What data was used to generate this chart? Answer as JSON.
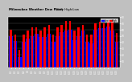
{
  "title": "Milwaukee Weather Dew Point",
  "subtitle": "Daily High/Low",
  "background_color": "#000000",
  "plot_bg_color": "#000000",
  "outer_bg_color": "#c0c0c0",
  "bar_color_high": "#ff0000",
  "bar_color_low": "#0000ff",
  "legend_high": "High",
  "legend_low": "Low",
  "ylim": [
    0,
    80
  ],
  "yticks": [
    10,
    20,
    30,
    40,
    50,
    60,
    70,
    80
  ],
  "categories": [
    "6/1",
    "6/2",
    "6/3",
    "6/4",
    "6/5",
    "6/6",
    "6/7",
    "6/8",
    "6/9",
    "6/10",
    "6/11",
    "6/12",
    "6/13",
    "6/14",
    "6/15",
    "6/16",
    "6/17",
    "6/18",
    "6/19",
    "6/20",
    "6/21",
    "6/22",
    "6/23",
    "6/24",
    "6/25",
    "6/26"
  ],
  "highs": [
    60,
    52,
    28,
    52,
    58,
    63,
    63,
    58,
    63,
    68,
    52,
    63,
    68,
    74,
    74,
    58,
    63,
    68,
    52,
    52,
    70,
    72,
    70,
    74,
    72,
    55
  ],
  "lows": [
    50,
    42,
    16,
    40,
    46,
    50,
    53,
    48,
    48,
    53,
    40,
    50,
    56,
    58,
    60,
    43,
    50,
    58,
    40,
    38,
    60,
    62,
    62,
    65,
    58,
    40
  ]
}
